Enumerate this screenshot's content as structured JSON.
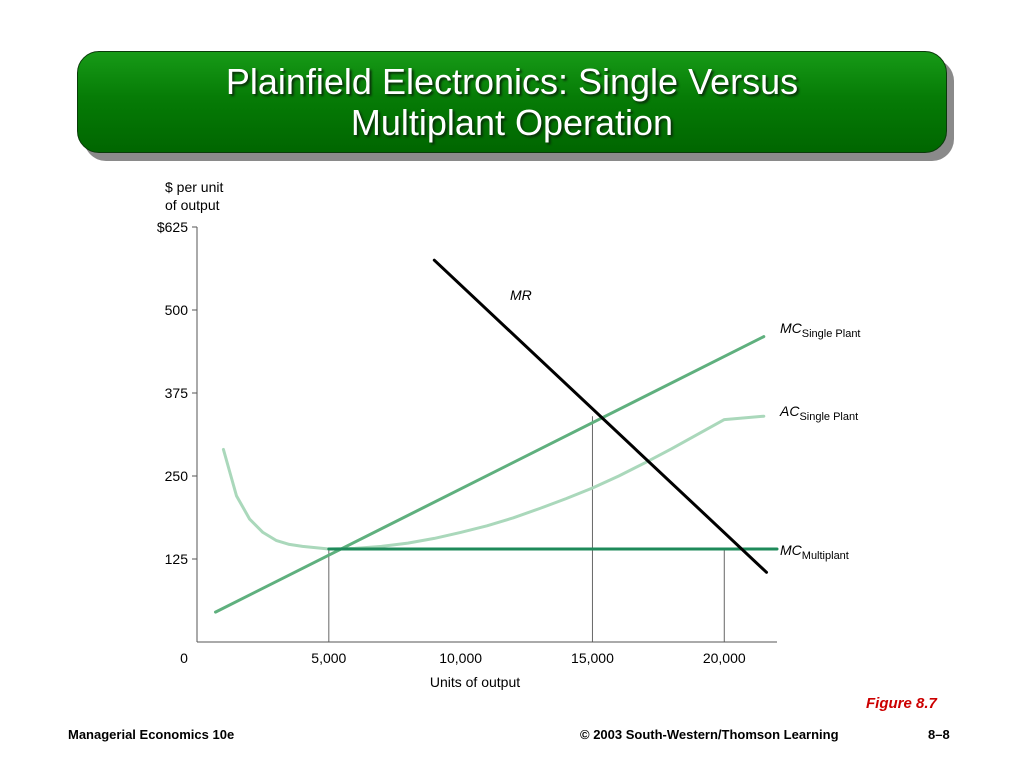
{
  "slide": {
    "title_line1": "Plainfield Electronics: Single Versus",
    "title_line2": "Multiplant Operation",
    "figure_label": "Figure 8.7",
    "footer_left": "Managerial Economics 10e",
    "footer_center": "© 2003 South-Western/Thomson Learning",
    "footer_right": "8–8"
  },
  "colors": {
    "banner": "#067c06",
    "mc_single": "#5fb07e",
    "ac_single": "#aad8bb",
    "mc_multi": "#1e8a5a",
    "mr": "#000000",
    "figure_label": "#cc0000"
  },
  "chart_data": {
    "type": "line",
    "ylabel_line1": "$ per unit",
    "ylabel_line2": "of output",
    "xlabel": "Units of output",
    "xlim": [
      0,
      22000
    ],
    "ylim": [
      0,
      625
    ],
    "x_ticks": [
      {
        "value": 0,
        "label": "0"
      },
      {
        "value": 5000,
        "label": "5,000"
      },
      {
        "value": 10000,
        "label": "10,000"
      },
      {
        "value": 15000,
        "label": "15,000"
      },
      {
        "value": 20000,
        "label": "20,000"
      }
    ],
    "y_ticks": [
      {
        "value": 125,
        "label": "125"
      },
      {
        "value": 250,
        "label": "250"
      },
      {
        "value": 375,
        "label": "375"
      },
      {
        "value": 500,
        "label": "500"
      },
      {
        "value": 625,
        "label": "$625"
      }
    ],
    "series": [
      {
        "key": "mr",
        "name": "MR",
        "name_sub": "",
        "x": [
          9000,
          21600
        ],
        "y": [
          575,
          105
        ]
      },
      {
        "key": "mc_single",
        "name": "MC",
        "name_sub": "Single Plant",
        "x": [
          700,
          21500
        ],
        "y": [
          45,
          460
        ]
      },
      {
        "key": "ac_single",
        "name": "AC",
        "name_sub": "Single Plant",
        "x": [
          1000,
          1500,
          2000,
          2500,
          3000,
          3500,
          4000,
          5000,
          6000,
          7000,
          8000,
          9000,
          10000,
          11000,
          12000,
          13000,
          14000,
          15000,
          16000,
          17000,
          18000,
          19000,
          20000,
          21500
        ],
        "y": [
          290,
          220,
          185,
          165,
          153,
          147,
          144,
          140,
          141,
          144,
          149,
          156,
          165,
          175,
          187,
          201,
          216,
          232,
          250,
          270,
          291,
          313,
          335,
          340
        ]
      },
      {
        "key": "mc_multi",
        "name": "MC",
        "name_sub": "Multiplant",
        "x": [
          5000,
          22000
        ],
        "y": [
          140,
          140
        ]
      }
    ],
    "reference_lines": [
      {
        "x": 5000,
        "y": 140
      },
      {
        "x": 15000,
        "y": 340
      },
      {
        "x": 20000,
        "y": 140
      }
    ]
  }
}
